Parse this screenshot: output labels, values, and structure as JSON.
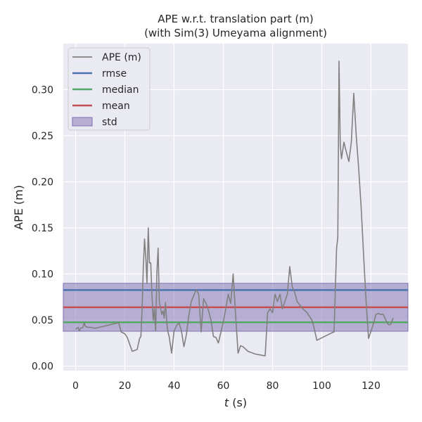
{
  "chart_data": {
    "type": "line",
    "title": "APE w.r.t. translation part (m)",
    "subtitle": "(with Sim(3) Umeyama alignment)",
    "xlabel_italic": "t",
    "xlabel_unit": " (s)",
    "ylabel": "APE (m)",
    "xlim": [
      -5,
      135
    ],
    "ylim": [
      -0.005,
      0.35
    ],
    "xticks": [
      0,
      20,
      40,
      60,
      80,
      100,
      120
    ],
    "xtick_labels": [
      "0",
      "20",
      "40",
      "60",
      "80",
      "100",
      "120"
    ],
    "yticks": [
      0.0,
      0.05,
      0.1,
      0.15,
      0.2,
      0.25,
      0.3
    ],
    "ytick_labels": [
      "0.00",
      "0.05",
      "0.10",
      "0.15",
      "0.20",
      "0.25",
      "0.30"
    ],
    "grid": true,
    "legend_position": "top-left",
    "series": [
      {
        "name": "APE (m)",
        "color": "#808080",
        "x": [
          0,
          1,
          1.5,
          2,
          3,
          3.5,
          4,
          5,
          6,
          8,
          17.5,
          18.5,
          20,
          21,
          23,
          25,
          26,
          26.5,
          27,
          27.5,
          28,
          28.5,
          29,
          29.5,
          30,
          30.5,
          31,
          31.5,
          32,
          32.5,
          33,
          33.5,
          34,
          34.5,
          35,
          35.5,
          36,
          36.5,
          37,
          37.5,
          38,
          39,
          40,
          41,
          42,
          43,
          44,
          45,
          46,
          47,
          49,
          50,
          51,
          52,
          53,
          54,
          55,
          56,
          57,
          58,
          60,
          61,
          62,
          63,
          64,
          65,
          66,
          67,
          68,
          70,
          73,
          75,
          77,
          78,
          79,
          80,
          81,
          82,
          83,
          84,
          85,
          86,
          87,
          88,
          89,
          90,
          92,
          94,
          96,
          97,
          98,
          104,
          105,
          106,
          106.5,
          107,
          107.5,
          108,
          109,
          110,
          111,
          112,
          113,
          114,
          115,
          116,
          117,
          118,
          119,
          120,
          121,
          122,
          123,
          124,
          125,
          126,
          127,
          128,
          129
        ],
        "values": [
          0.04,
          0.042,
          0.038,
          0.041,
          0.042,
          0.047,
          0.043,
          0.042,
          0.042,
          0.041,
          0.047,
          0.037,
          0.035,
          0.031,
          0.016,
          0.018,
          0.03,
          0.032,
          0.061,
          0.108,
          0.138,
          0.118,
          0.09,
          0.15,
          0.112,
          0.112,
          0.078,
          0.05,
          0.062,
          0.038,
          0.1,
          0.128,
          0.07,
          0.063,
          0.056,
          0.06,
          0.052,
          0.069,
          0.048,
          0.037,
          0.032,
          0.014,
          0.038,
          0.044,
          0.047,
          0.038,
          0.021,
          0.034,
          0.055,
          0.07,
          0.083,
          0.078,
          0.037,
          0.073,
          0.068,
          0.06,
          0.05,
          0.032,
          0.031,
          0.025,
          0.048,
          0.062,
          0.078,
          0.068,
          0.1,
          0.055,
          0.014,
          0.022,
          0.021,
          0.016,
          0.013,
          0.012,
          0.011,
          0.058,
          0.062,
          0.058,
          0.078,
          0.07,
          0.078,
          0.062,
          0.07,
          0.078,
          0.108,
          0.086,
          0.08,
          0.07,
          0.063,
          0.058,
          0.05,
          0.04,
          0.028,
          0.036,
          0.037,
          0.127,
          0.14,
          0.331,
          0.24,
          0.225,
          0.243,
          0.232,
          0.222,
          0.243,
          0.296,
          0.25,
          0.214,
          0.172,
          0.12,
          0.07,
          0.03,
          0.038,
          0.046,
          0.056,
          0.057,
          0.056,
          0.056,
          0.05,
          0.045,
          0.045,
          0.052
        ]
      },
      {
        "name": "rmse",
        "color": "#4c72b0",
        "value": 0.0825
      },
      {
        "name": "median",
        "color": "#55a868",
        "value": 0.0475
      },
      {
        "name": "mean",
        "color": "#c44e52",
        "value": 0.0638
      },
      {
        "name": "std",
        "color": "#8172b2",
        "lower": 0.0378,
        "upper": 0.0898
      }
    ],
    "legend": [
      "APE (m)",
      "rmse",
      "median",
      "mean",
      "std"
    ]
  }
}
